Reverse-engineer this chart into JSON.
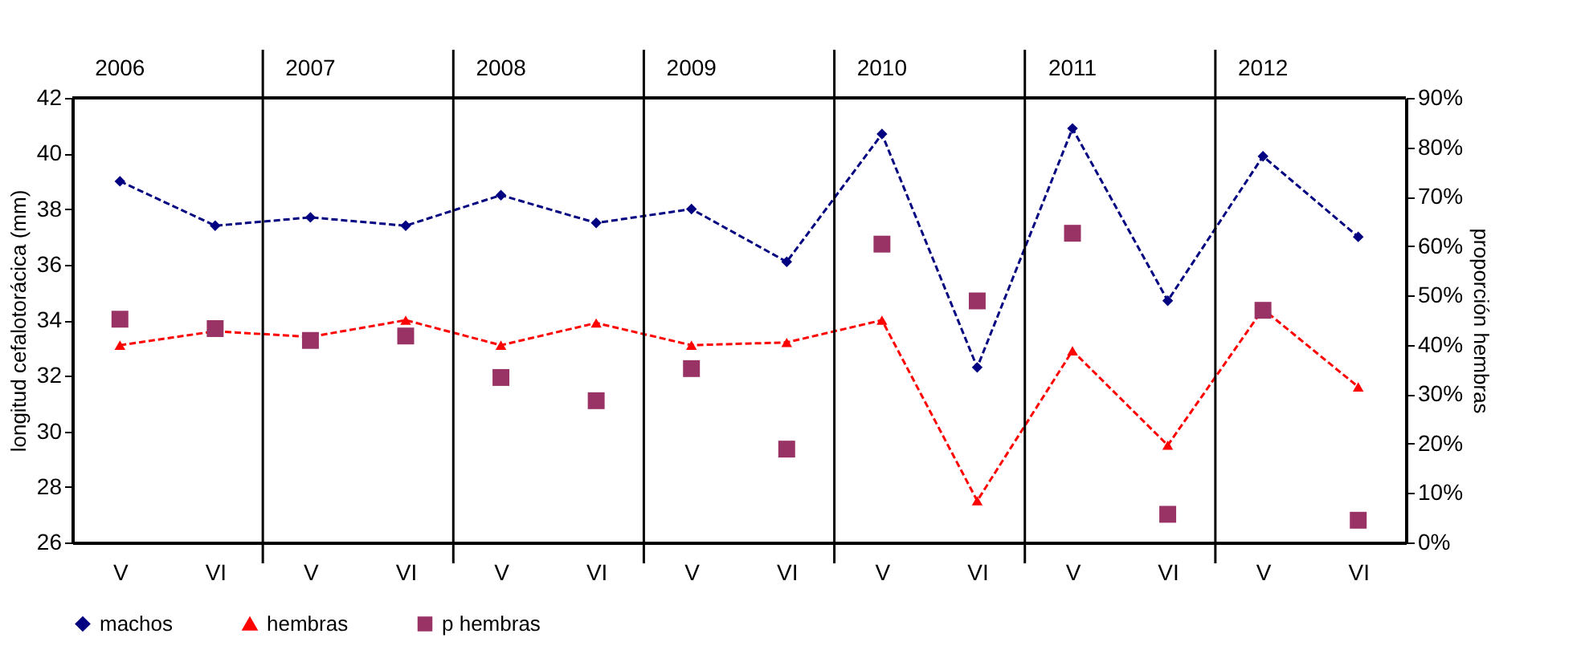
{
  "chart_data": {
    "type": "line",
    "categories": [
      "V",
      "VI",
      "V",
      "VI",
      "V",
      "VI",
      "V",
      "VI",
      "V",
      "VI",
      "V",
      "VI",
      "V",
      "VI"
    ],
    "ylabel": "longitud cefalotorácica (mm)",
    "y2label": "proporción hembras",
    "ylim": [
      26,
      42
    ],
    "yticks": [
      26,
      28,
      30,
      32,
      34,
      36,
      38,
      40,
      42
    ],
    "y2lim": [
      0,
      90
    ],
    "y2ticks": [
      {
        "value": 0,
        "label": "0%"
      },
      {
        "value": 10,
        "label": "10%"
      },
      {
        "value": 20,
        "label": "20%"
      },
      {
        "value": 30,
        "label": "30%"
      },
      {
        "value": 40,
        "label": "40%"
      },
      {
        "value": 50,
        "label": "50%"
      },
      {
        "value": 60,
        "label": "60%"
      },
      {
        "value": 70,
        "label": "70%"
      },
      {
        "value": 80,
        "label": "80%"
      },
      {
        "value": 90,
        "label": "90%"
      }
    ],
    "annotations": [
      "2006",
      "2007",
      "2008",
      "2009",
      "2010",
      "2011",
      "2012"
    ],
    "grid": "x",
    "legend": "bottom",
    "series": [
      {
        "name": "machos",
        "type": "line",
        "color": "#000080",
        "marker": "diamond",
        "line_style": "dashed",
        "values": [
          39.0,
          37.4,
          37.7,
          37.4,
          38.5,
          37.5,
          38.0,
          36.1,
          40.7,
          32.3,
          40.9,
          34.7,
          39.9,
          37.0
        ]
      },
      {
        "name": "hembras",
        "type": "line",
        "color": "#ff0000",
        "marker": "triangle",
        "line_style": "dashed",
        "values": [
          33.1,
          33.6,
          33.4,
          34.0,
          33.1,
          33.9,
          33.1,
          33.2,
          34.0,
          27.5,
          32.9,
          29.5,
          34.4,
          31.6
        ]
      },
      {
        "name": "p hembras",
        "type": "scatter",
        "axis": "y2",
        "color": "#993366",
        "marker": "square",
        "values": [
          45.2,
          43.3,
          40.9,
          41.8,
          33.4,
          28.7,
          35.2,
          18.9,
          60.4,
          48.9,
          62.6,
          5.7,
          47.0,
          4.5
        ]
      }
    ]
  }
}
